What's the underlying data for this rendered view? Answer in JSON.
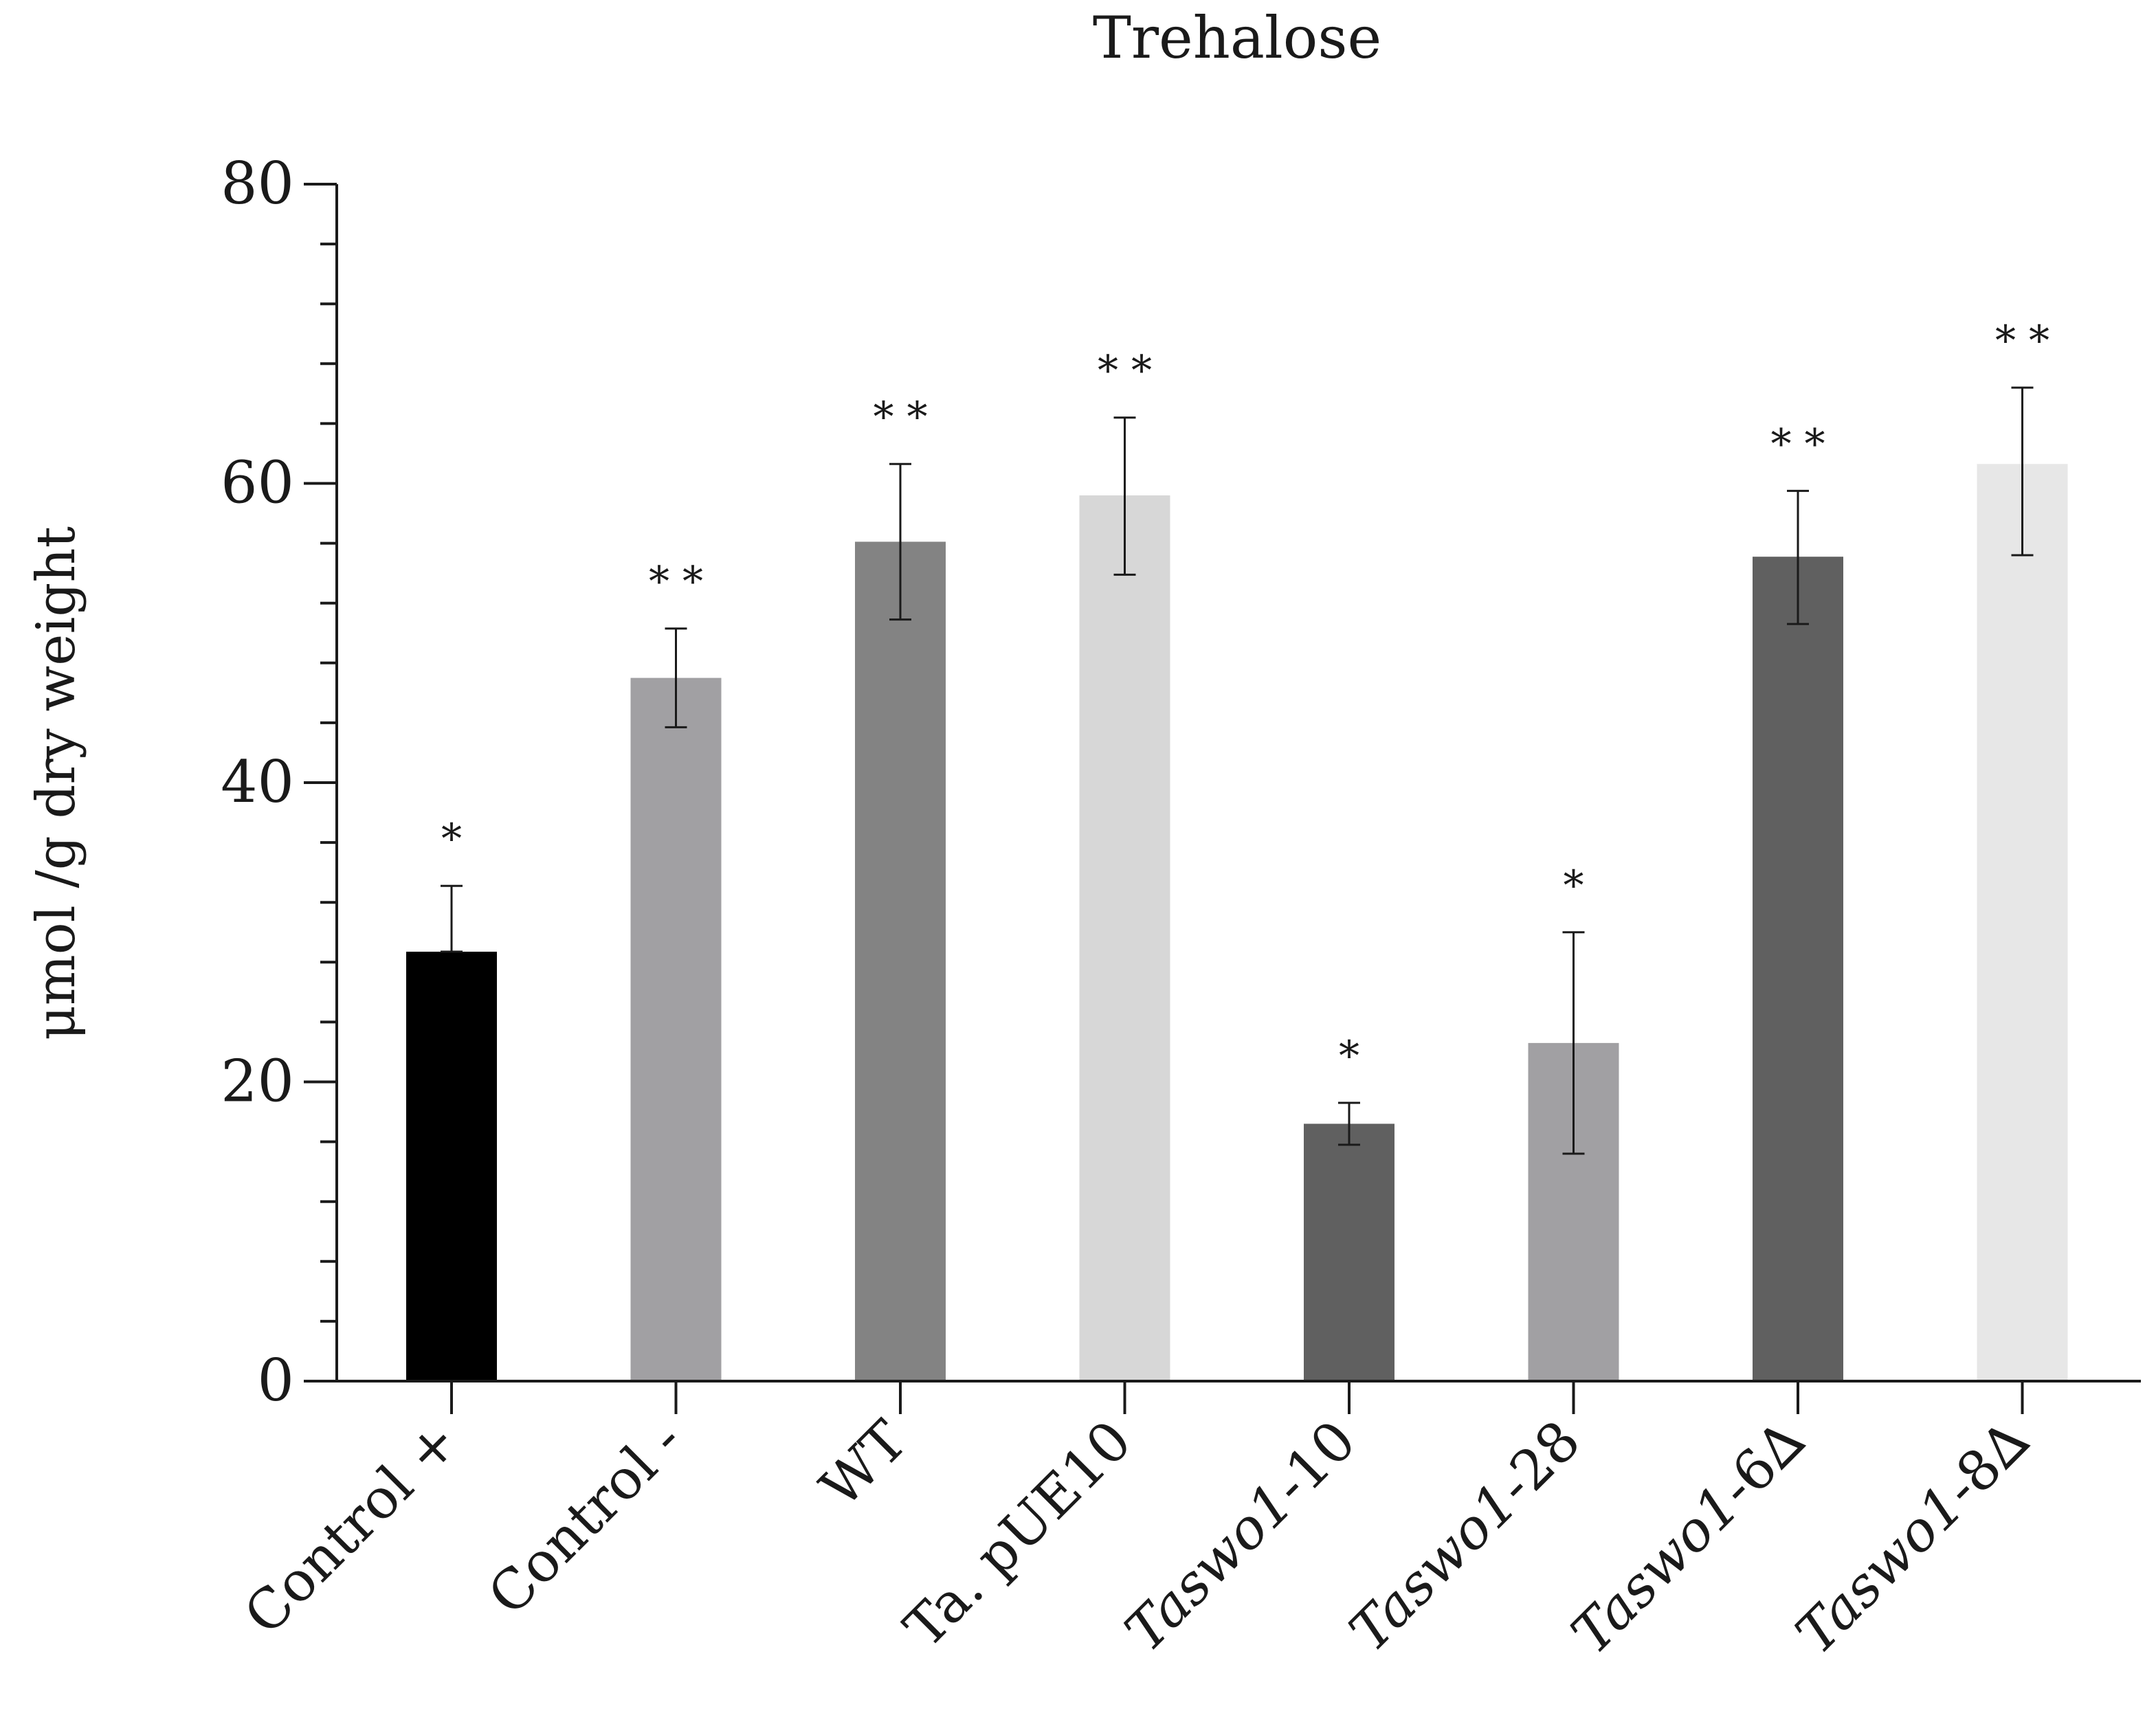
{
  "chart_data": {
    "type": "bar",
    "title": "Trehalose",
    "xlabel": "",
    "ylabel": "μmol /g dry weight",
    "ylim": [
      0,
      80
    ],
    "y_ticks": [
      "0",
      "20",
      "40",
      "60",
      "80"
    ],
    "y_tick_values": [
      0,
      20,
      40,
      60,
      80
    ],
    "y_minor_step": 4,
    "grid": false,
    "legend": "none",
    "categories": [
      {
        "prefix": "Control +",
        "suffix": ""
      },
      {
        "prefix": "Control -",
        "suffix": ""
      },
      {
        "prefix": "WT",
        "suffix": ""
      },
      {
        "prefix": "Ta. pUE10",
        "suffix": ""
      },
      {
        "prefix": "Taswo1",
        "suffix": "-10"
      },
      {
        "prefix": "Taswo1",
        "suffix": "-28"
      },
      {
        "prefix": "Taswo1",
        "suffix": "-6∆"
      },
      {
        "prefix": "Taswo1",
        "suffix": "-8∆"
      }
    ],
    "italic_prefix": [
      false,
      false,
      false,
      false,
      true,
      true,
      true,
      true
    ],
    "values": [
      28.7,
      47.0,
      56.1,
      59.2,
      17.2,
      22.6,
      55.1,
      61.3
    ],
    "error_upper": [
      33.1,
      50.3,
      61.3,
      64.4,
      18.6,
      30.0,
      59.5,
      66.4
    ],
    "error_lower": [
      28.7,
      43.7,
      50.9,
      53.9,
      15.8,
      15.2,
      50.6,
      55.2
    ],
    "significance": [
      "*",
      "* *",
      "* *",
      "* *",
      "*",
      "*",
      "* *",
      "* *"
    ],
    "colors": [
      "#000000",
      "#a1a0a3",
      "#838383",
      "#d7d7d7",
      "#606060",
      "#a1a0a3",
      "#606060",
      "#e7e7e7"
    ]
  }
}
